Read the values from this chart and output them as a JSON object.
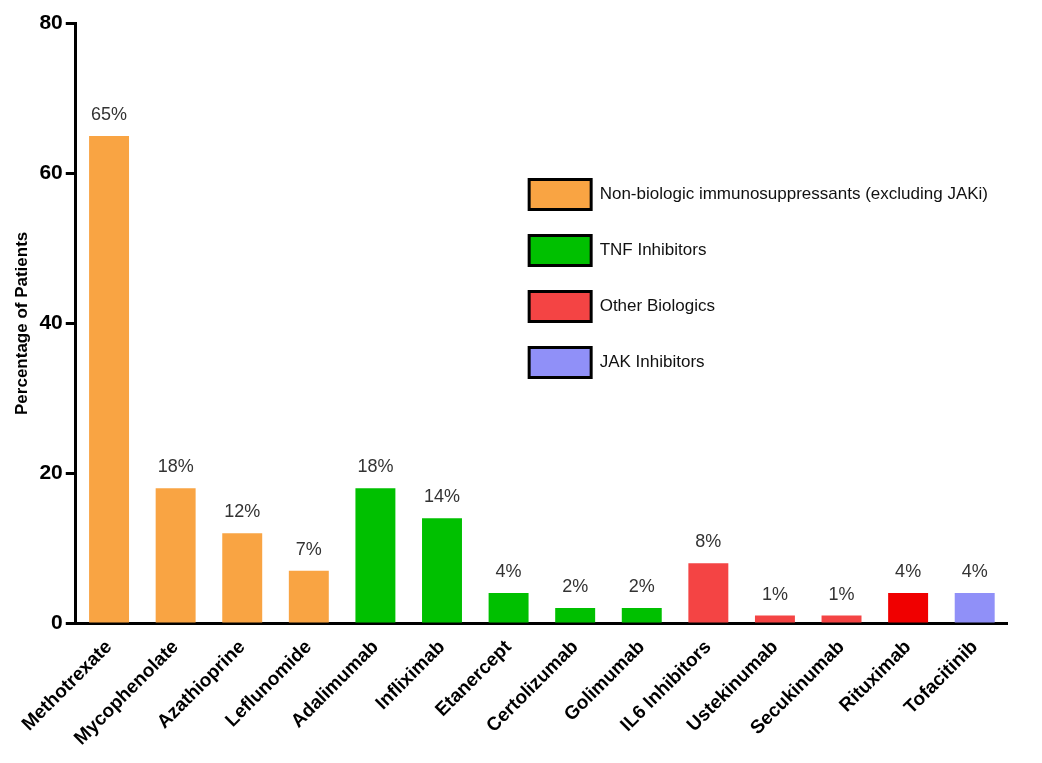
{
  "chart_data": {
    "type": "bar",
    "ylabel": "Percentage of Patients",
    "categories": [
      "Methotrexate",
      "Mycophenolate",
      "Azathioprine",
      "Leflunomide",
      "Adalimumab",
      "Infliximab",
      "Etanercept",
      "Certolizumab",
      "Golimumab",
      "IL6 Inhibitors",
      "Ustekinumab",
      "Secukinumab",
      "Rituximab",
      "Tofacitinib"
    ],
    "series": [
      {
        "name": "Non-biologic immunosuppressants (excluding JAKi)",
        "color": "#f9a443",
        "values": [
          65,
          18,
          12,
          7,
          null,
          null,
          null,
          null,
          null,
          null,
          null,
          null,
          null,
          null
        ],
        "value_labels": [
          "65%",
          "18%",
          "12%",
          "7%",
          null,
          null,
          null,
          null,
          null,
          null,
          null,
          null,
          null,
          null
        ]
      },
      {
        "name": "TNF Inhibitors",
        "color": "#00c000",
        "values": [
          null,
          null,
          null,
          null,
          18,
          14,
          4,
          2,
          2,
          null,
          null,
          null,
          null,
          null
        ],
        "value_labels": [
          null,
          null,
          null,
          null,
          "18%",
          "14%",
          "4%",
          "2%",
          "2%",
          null,
          null,
          null,
          null,
          null
        ]
      },
      {
        "name": "Other Biologics",
        "color": "#f44444",
        "colors": [
          null,
          null,
          null,
          null,
          null,
          null,
          null,
          null,
          null,
          "#f44444",
          "#f44444",
          "#f44444",
          "#f00000",
          null
        ],
        "values": [
          null,
          null,
          null,
          null,
          null,
          null,
          null,
          null,
          null,
          8,
          1,
          1,
          4,
          null
        ],
        "value_labels": [
          null,
          null,
          null,
          null,
          null,
          null,
          null,
          null,
          null,
          "8%",
          "1%",
          "1%",
          "4%",
          null
        ]
      },
      {
        "name": "JAK Inhibitors",
        "color": "#9090f8",
        "values": [
          null,
          null,
          null,
          null,
          null,
          null,
          null,
          null,
          null,
          null,
          null,
          null,
          null,
          4
        ],
        "value_labels": [
          null,
          null,
          null,
          null,
          null,
          null,
          null,
          null,
          null,
          null,
          null,
          null,
          null,
          "4%"
        ]
      }
    ],
    "ylim": [
      0,
      80
    ],
    "yticks": [
      0,
      20,
      40,
      60,
      80
    ],
    "grid": false,
    "legend": "top right"
  }
}
